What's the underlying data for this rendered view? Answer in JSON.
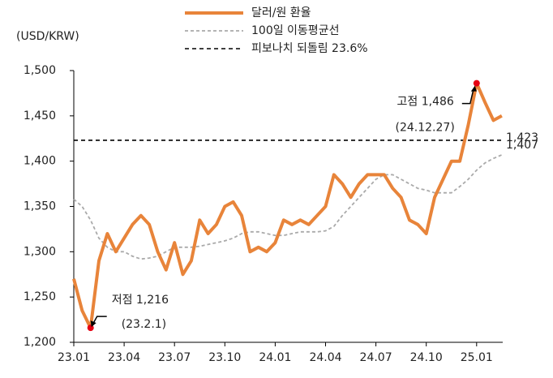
{
  "chart_data": {
    "type": "line",
    "y_unit_label": "(USD/KRW)",
    "categories": [
      "23.01",
      null,
      null,
      null,
      null,
      null,
      "23.04",
      null,
      null,
      null,
      null,
      null,
      "23.07",
      null,
      null,
      null,
      null,
      null,
      "23.10",
      null,
      null,
      null,
      null,
      null,
      "24.01",
      null,
      null,
      null,
      null,
      null,
      "24.04",
      null,
      null,
      null,
      null,
      null,
      "24.07",
      null,
      null,
      null,
      null,
      null,
      "24.10",
      null,
      null,
      null,
      null,
      null,
      "25.01",
      null,
      null,
      null
    ],
    "series": [
      {
        "name": "달러/원 환율",
        "color": "#e8843a",
        "style": "solid",
        "values": [
          1270,
          1235,
          1216,
          1290,
          1320,
          1300,
          1315,
          1330,
          1340,
          1330,
          1300,
          1280,
          1310,
          1275,
          1290,
          1335,
          1320,
          1330,
          1350,
          1355,
          1340,
          1300,
          1305,
          1300,
          1310,
          1335,
          1330,
          1335,
          1330,
          1340,
          1350,
          1385,
          1375,
          1360,
          1375,
          1385,
          1385,
          1385,
          1370,
          1360,
          1335,
          1330,
          1320,
          1360,
          1380,
          1400,
          1400,
          1440,
          1486,
          1465,
          1445,
          1450
        ]
      },
      {
        "name": "100일 이동평균선",
        "color": "#aaaaaa",
        "style": "dashed",
        "end_label": "1,407",
        "values": [
          1358,
          1350,
          1335,
          1315,
          1305,
          1300,
          1300,
          1295,
          1292,
          1293,
          1295,
          1300,
          1305,
          1305,
          1305,
          1306,
          1308,
          1310,
          1312,
          1315,
          1320,
          1322,
          1322,
          1320,
          1318,
          1318,
          1320,
          1322,
          1322,
          1322,
          1323,
          1328,
          1340,
          1350,
          1360,
          1370,
          1380,
          1385,
          1385,
          1380,
          1375,
          1370,
          1368,
          1365,
          1365,
          1365,
          1372,
          1380,
          1390,
          1398,
          1403,
          1407
        ]
      }
    ],
    "reference_line": {
      "name": "피보나치 되돌림 23.6%",
      "value": 1423,
      "label": "1,423",
      "color": "#000000"
    },
    "annotations": [
      {
        "label": "저점 1,216",
        "date": "(23.2.1)",
        "value": 1216,
        "color": "#e60012"
      },
      {
        "label": "고점 1,486",
        "date": "(24.12.27)",
        "value": 1486,
        "color": "#e60012"
      }
    ],
    "ylim": [
      1200,
      1500
    ],
    "yticks": [
      {
        "value": 1200,
        "label": "1,200"
      },
      {
        "value": 1250,
        "label": "1,250"
      },
      {
        "value": 1300,
        "label": "1,300"
      },
      {
        "value": 1350,
        "label": "1,350"
      },
      {
        "value": 1400,
        "label": "1,400"
      },
      {
        "value": 1450,
        "label": "1,450"
      },
      {
        "value": 1500,
        "label": "1,500"
      }
    ],
    "grid": false,
    "legend": "top"
  }
}
